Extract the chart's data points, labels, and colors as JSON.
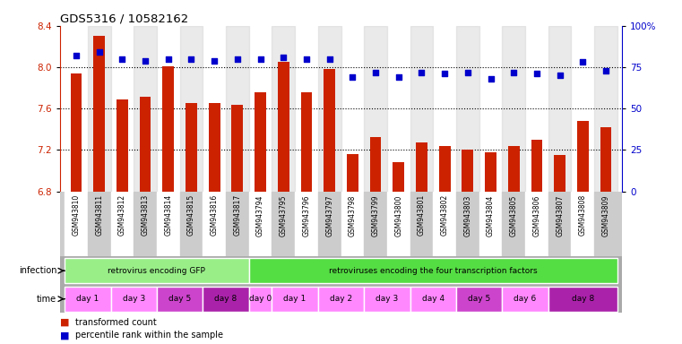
{
  "title": "GDS5316 / 10582162",
  "samples": [
    "GSM943810",
    "GSM943811",
    "GSM943812",
    "GSM943813",
    "GSM943814",
    "GSM943815",
    "GSM943816",
    "GSM943817",
    "GSM943794",
    "GSM943795",
    "GSM943796",
    "GSM943797",
    "GSM943798",
    "GSM943799",
    "GSM943800",
    "GSM943801",
    "GSM943802",
    "GSM943803",
    "GSM943804",
    "GSM943805",
    "GSM943806",
    "GSM943807",
    "GSM943808",
    "GSM943809"
  ],
  "red_values": [
    7.94,
    8.3,
    7.69,
    7.71,
    8.01,
    7.65,
    7.65,
    7.64,
    7.76,
    8.05,
    7.76,
    7.98,
    7.16,
    7.32,
    7.08,
    7.27,
    7.24,
    7.2,
    7.18,
    7.24,
    7.3,
    7.15,
    7.48,
    7.42
  ],
  "blue_values": [
    82,
    84,
    80,
    79,
    80,
    80,
    79,
    80,
    80,
    81,
    80,
    80,
    69,
    72,
    69,
    72,
    71,
    72,
    68,
    72,
    71,
    70,
    78,
    73
  ],
  "ylim_left": [
    6.8,
    8.4
  ],
  "ylim_right": [
    0,
    100
  ],
  "yticks_left": [
    6.8,
    7.2,
    7.6,
    8.0,
    8.4
  ],
  "yticks_right": [
    0,
    25,
    50,
    75,
    100
  ],
  "ytick_labels_right": [
    "0",
    "25",
    "50",
    "75",
    "100%"
  ],
  "hlines": [
    8.0,
    7.6,
    7.2
  ],
  "bar_color": "#cc2200",
  "dot_color": "#0000cc",
  "infection_groups": [
    {
      "label": "retrovirus encoding GFP",
      "start": 0,
      "end": 8,
      "color": "#99ee88"
    },
    {
      "label": "retroviruses encoding the four transcription factors",
      "start": 8,
      "end": 24,
      "color": "#55dd44"
    }
  ],
  "time_groups": [
    {
      "label": "day 1",
      "start": 0,
      "end": 2,
      "color": "#ff88ff"
    },
    {
      "label": "day 3",
      "start": 2,
      "end": 4,
      "color": "#ff88ff"
    },
    {
      "label": "day 5",
      "start": 4,
      "end": 6,
      "color": "#cc44cc"
    },
    {
      "label": "day 8",
      "start": 6,
      "end": 8,
      "color": "#aa22aa"
    },
    {
      "label": "day 0",
      "start": 8,
      "end": 9,
      "color": "#ff88ff"
    },
    {
      "label": "day 1",
      "start": 9,
      "end": 11,
      "color": "#ff88ff"
    },
    {
      "label": "day 2",
      "start": 11,
      "end": 13,
      "color": "#ff88ff"
    },
    {
      "label": "day 3",
      "start": 13,
      "end": 15,
      "color": "#ff88ff"
    },
    {
      "label": "day 4",
      "start": 15,
      "end": 17,
      "color": "#ff88ff"
    },
    {
      "label": "day 5",
      "start": 17,
      "end": 19,
      "color": "#cc44cc"
    },
    {
      "label": "day 6",
      "start": 19,
      "end": 21,
      "color": "#ff88ff"
    },
    {
      "label": "day 8",
      "start": 21,
      "end": 24,
      "color": "#aa22aa"
    }
  ],
  "left_axis_color": "#cc2200",
  "right_axis_color": "#0000cc",
  "bg_color": "#ffffff",
  "label_panel_bg": "#cccccc",
  "infection_panel_bg": "#aaaaaa",
  "time_panel_bg": "#aaaaaa"
}
